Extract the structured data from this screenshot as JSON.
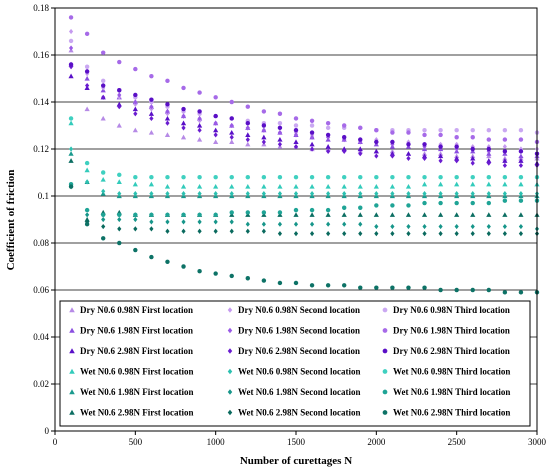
{
  "chart_data": {
    "type": "scatter",
    "title": "",
    "xlabel": "Number  of curettages N",
    "ylabel": "Coefficient of friction",
    "xlim": [
      0,
      3000
    ],
    "ylim": [
      0,
      0.18
    ],
    "x_ticks": [
      "0",
      "500",
      "1000",
      "1500",
      "2000",
      "2500",
      "3000"
    ],
    "y_ticks": [
      "0",
      "0.02",
      "0.04",
      "0.06",
      "0.08",
      "0.1",
      "0.12",
      "0.14",
      "0.16",
      "0.18"
    ],
    "horizontal_gridlines": true,
    "legend_position": "bottom-center, inside plot",
    "x": [
      100,
      200,
      300,
      400,
      500,
      600,
      700,
      800,
      900,
      1000,
      1100,
      1200,
      1300,
      1400,
      1500,
      1600,
      1700,
      1800,
      1900,
      2000,
      2100,
      2200,
      2300,
      2400,
      2500,
      2600,
      2700,
      2800,
      2900,
      3000
    ],
    "series": [
      {
        "name": "Dry N0.6 0.98N First location",
        "marker": "triangle",
        "color": "#b68ae6",
        "values": [
          0.162,
          0.137,
          0.133,
          0.13,
          0.128,
          0.127,
          0.126,
          0.125,
          0.124,
          0.123,
          0.123,
          0.122,
          0.122,
          0.121,
          0.121,
          0.12,
          0.12,
          0.12,
          0.119,
          0.119,
          0.119,
          0.118,
          0.118,
          0.118,
          0.117,
          0.117,
          0.117,
          0.116,
          0.116,
          0.116
        ]
      },
      {
        "name": "Dry N0.6 1.98N First location",
        "marker": "triangle",
        "color": "#8a4ee0",
        "values": [
          0.156,
          0.15,
          0.145,
          0.142,
          0.14,
          0.138,
          0.136,
          0.134,
          0.133,
          0.131,
          0.13,
          0.129,
          0.128,
          0.127,
          0.126,
          0.125,
          0.124,
          0.124,
          0.123,
          0.122,
          0.121,
          0.121,
          0.12,
          0.12,
          0.119,
          0.119,
          0.118,
          0.118,
          0.117,
          0.117
        ]
      },
      {
        "name": "Dry N0.6 2.98N First location",
        "marker": "triangle",
        "color": "#5a10c8",
        "values": [
          0.151,
          0.146,
          0.142,
          0.139,
          0.137,
          0.135,
          0.133,
          0.131,
          0.13,
          0.128,
          0.127,
          0.126,
          0.125,
          0.124,
          0.123,
          0.122,
          0.121,
          0.12,
          0.12,
          0.119,
          0.118,
          0.118,
          0.117,
          0.117,
          0.116,
          0.116,
          0.115,
          0.115,
          0.115,
          0.114
        ]
      },
      {
        "name": "Dry N0.6 0.98N Second location",
        "marker": "diamond",
        "color": "#c59aef",
        "values": [
          0.17,
          0.152,
          0.146,
          0.142,
          0.139,
          0.137,
          0.135,
          0.134,
          0.132,
          0.131,
          0.13,
          0.129,
          0.128,
          0.127,
          0.127,
          0.126,
          0.125,
          0.125,
          0.124,
          0.124,
          0.123,
          0.123,
          0.122,
          0.122,
          0.122,
          0.121,
          0.121,
          0.121,
          0.12,
          0.12
        ]
      },
      {
        "name": "Dry N0.6 1.98N Second location",
        "marker": "diamond",
        "color": "#9a5ae6",
        "values": [
          0.163,
          0.153,
          0.147,
          0.143,
          0.14,
          0.138,
          0.136,
          0.134,
          0.133,
          0.131,
          0.13,
          0.129,
          0.128,
          0.127,
          0.126,
          0.125,
          0.125,
          0.124,
          0.123,
          0.123,
          0.122,
          0.122,
          0.121,
          0.121,
          0.12,
          0.12,
          0.119,
          0.119,
          0.119,
          0.118
        ]
      },
      {
        "name": "Dry N0.6 2.98N Second location",
        "marker": "diamond",
        "color": "#6a1cd0",
        "values": [
          0.155,
          0.147,
          0.142,
          0.138,
          0.135,
          0.133,
          0.131,
          0.129,
          0.128,
          0.126,
          0.125,
          0.124,
          0.123,
          0.122,
          0.121,
          0.12,
          0.119,
          0.119,
          0.118,
          0.117,
          0.117,
          0.116,
          0.116,
          0.115,
          0.115,
          0.114,
          0.114,
          0.113,
          0.113,
          0.113
        ]
      },
      {
        "name": "Dry N0.6 0.98N Third location",
        "marker": "circle",
        "color": "#caa8f2",
        "values": [
          0.166,
          0.155,
          0.149,
          0.145,
          0.142,
          0.14,
          0.138,
          0.136,
          0.135,
          0.134,
          0.133,
          0.132,
          0.131,
          0.131,
          0.13,
          0.13,
          0.129,
          0.129,
          0.129,
          0.128,
          0.128,
          0.128,
          0.128,
          0.128,
          0.128,
          0.128,
          0.128,
          0.128,
          0.128,
          0.127
        ]
      },
      {
        "name": "Dry N0.6 1.98N Third location",
        "marker": "circle",
        "color": "#a66ae8",
        "values": [
          0.176,
          0.169,
          0.161,
          0.157,
          0.154,
          0.151,
          0.149,
          0.146,
          0.144,
          0.142,
          0.14,
          0.138,
          0.136,
          0.135,
          0.133,
          0.132,
          0.131,
          0.13,
          0.129,
          0.128,
          0.127,
          0.127,
          0.126,
          0.126,
          0.125,
          0.125,
          0.124,
          0.124,
          0.124,
          0.123
        ]
      },
      {
        "name": "Dry N0.6 2.98N Third location",
        "marker": "circle",
        "color": "#5a0fc6",
        "values": [
          0.156,
          0.153,
          0.147,
          0.145,
          0.143,
          0.141,
          0.139,
          0.137,
          0.136,
          0.134,
          0.133,
          0.131,
          0.13,
          0.129,
          0.128,
          0.127,
          0.126,
          0.125,
          0.124,
          0.123,
          0.123,
          0.122,
          0.122,
          0.121,
          0.121,
          0.12,
          0.12,
          0.119,
          0.119,
          0.118
        ]
      },
      {
        "name": "Wet N0.6 0.98N First location",
        "marker": "triangle",
        "color": "#33cbbb",
        "values": [
          0.131,
          0.111,
          0.107,
          0.106,
          0.105,
          0.105,
          0.104,
          0.104,
          0.104,
          0.104,
          0.104,
          0.104,
          0.104,
          0.104,
          0.104,
          0.104,
          0.104,
          0.104,
          0.104,
          0.104,
          0.104,
          0.104,
          0.105,
          0.105,
          0.105,
          0.105,
          0.105,
          0.105,
          0.105,
          0.105
        ]
      },
      {
        "name": "Wet N0.6 1.98N First location",
        "marker": "triangle",
        "color": "#1a9a8e",
        "values": [
          0.118,
          0.106,
          0.101,
          0.1,
          0.1,
          0.1,
          0.1,
          0.1,
          0.1,
          0.1,
          0.1,
          0.1,
          0.1,
          0.1,
          0.1,
          0.1,
          0.1,
          0.1,
          0.1,
          0.1,
          0.1,
          0.1,
          0.1,
          0.1,
          0.1,
          0.1,
          0.1,
          0.1,
          0.1,
          0.1
        ]
      },
      {
        "name": "Wet N0.6 2.98N First location",
        "marker": "triangle",
        "color": "#0c6e62",
        "values": [
          0.115,
          0.09,
          0.093,
          0.093,
          0.092,
          0.092,
          0.092,
          0.092,
          0.092,
          0.092,
          0.092,
          0.092,
          0.092,
          0.092,
          0.092,
          0.092,
          0.092,
          0.092,
          0.092,
          0.092,
          0.092,
          0.092,
          0.092,
          0.092,
          0.092,
          0.092,
          0.092,
          0.092,
          0.092,
          0.092
        ]
      },
      {
        "name": "Wet N0.6 0.98N Second location",
        "marker": "diamond",
        "color": "#2cc0b0",
        "values": [
          0.12,
          0.106,
          0.102,
          0.101,
          0.101,
          0.101,
          0.101,
          0.101,
          0.101,
          0.101,
          0.101,
          0.101,
          0.101,
          0.101,
          0.101,
          0.101,
          0.101,
          0.101,
          0.101,
          0.101,
          0.101,
          0.101,
          0.101,
          0.101,
          0.101,
          0.101,
          0.101,
          0.101,
          0.101,
          0.101
        ]
      },
      {
        "name": "Wet N0.6 1.98N Second location",
        "marker": "diamond",
        "color": "#17968a",
        "values": [
          0.104,
          0.092,
          0.09,
          0.09,
          0.09,
          0.089,
          0.089,
          0.089,
          0.089,
          0.089,
          0.089,
          0.088,
          0.088,
          0.088,
          0.088,
          0.088,
          0.088,
          0.088,
          0.088,
          0.087,
          0.087,
          0.087,
          0.087,
          0.087,
          0.087,
          0.087,
          0.087,
          0.087,
          0.087,
          0.086
        ]
      },
      {
        "name": "Wet N0.6 2.98N Second location",
        "marker": "diamond",
        "color": "#0a6a5e",
        "values": [
          0.104,
          0.089,
          0.087,
          0.086,
          0.086,
          0.086,
          0.085,
          0.085,
          0.085,
          0.085,
          0.085,
          0.085,
          0.085,
          0.084,
          0.084,
          0.084,
          0.084,
          0.084,
          0.084,
          0.084,
          0.084,
          0.084,
          0.084,
          0.084,
          0.084,
          0.084,
          0.084,
          0.084,
          0.084,
          0.084
        ]
      },
      {
        "name": "Wet N0.6 0.98N Third location",
        "marker": "circle",
        "color": "#3fd0c0",
        "values": [
          0.133,
          0.114,
          0.11,
          0.109,
          0.108,
          0.108,
          0.108,
          0.108,
          0.108,
          0.108,
          0.108,
          0.108,
          0.108,
          0.108,
          0.108,
          0.108,
          0.108,
          0.108,
          0.108,
          0.108,
          0.108,
          0.108,
          0.108,
          0.108,
          0.108,
          0.108,
          0.108,
          0.108,
          0.108,
          0.108
        ]
      },
      {
        "name": "Wet N0.6 1.98N Third location",
        "marker": "circle",
        "color": "#1fa496",
        "values": [
          0.105,
          0.094,
          0.092,
          0.092,
          0.092,
          0.092,
          0.092,
          0.092,
          0.092,
          0.092,
          0.093,
          0.093,
          0.093,
          0.093,
          0.094,
          0.094,
          0.094,
          0.095,
          0.095,
          0.096,
          0.096,
          0.096,
          0.097,
          0.097,
          0.097,
          0.097,
          0.097,
          0.098,
          0.098,
          0.098
        ]
      },
      {
        "name": "Wet N0.6 2.98N Third location",
        "marker": "circle",
        "color": "#0d7266",
        "values": [
          0.104,
          0.088,
          0.082,
          0.08,
          0.077,
          0.074,
          0.072,
          0.07,
          0.068,
          0.067,
          0.066,
          0.065,
          0.064,
          0.063,
          0.063,
          0.062,
          0.062,
          0.062,
          0.061,
          0.061,
          0.061,
          0.061,
          0.061,
          0.06,
          0.06,
          0.06,
          0.06,
          0.059,
          0.059,
          0.059
        ]
      }
    ],
    "legend_layout": [
      [
        "Dry N0.6 0.98N First location",
        "Dry N0.6 0.98N Second location",
        "Dry N0.6 0.98N Third location"
      ],
      [
        "Dry N0.6 1.98N First location",
        "Dry N0.6 1.98N Second location",
        "Dry N0.6 1.98N Third location"
      ],
      [
        "Dry N0.6 2.98N First location",
        "Dry N0.6 2.98N Second location",
        "Dry N0.6 2.98N Third location"
      ],
      [
        "Wet N0.6 0.98N First location",
        "Wet N0.6 0.98N Second location",
        "Wet N0.6 0.98N Third location"
      ],
      [
        "Wet N0.6 1.98N First location",
        "Wet N0.6 1.98N Second location",
        "Wet N0.6 1.98N Third location"
      ],
      [
        "Wet N0.6 2.98N First location",
        "Wet N0.6 2.98N Second location",
        "Wet N0.6 2.98N Third location"
      ]
    ]
  }
}
